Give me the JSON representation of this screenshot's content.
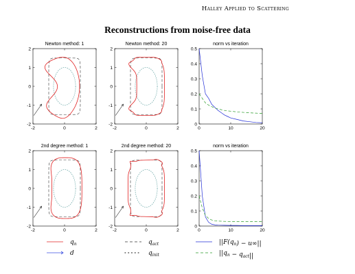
{
  "header": {
    "running_title": "Halley Applied to Scattering"
  },
  "figure": {
    "title": "Reconstructions from noise-free data"
  },
  "chart_data": [
    {
      "type": "line",
      "title": "Newton method: 1",
      "xlim": [
        -2,
        2
      ],
      "ylim": [
        -2,
        2
      ],
      "xticks": [
        "-2",
        "0",
        "2"
      ],
      "yticks": [
        "-2",
        "-1",
        "0",
        "1",
        "2"
      ],
      "curves": {
        "qn_shape": "reconstruction_newton_1"
      }
    },
    {
      "type": "line",
      "title": "Newton method: 20",
      "xlim": [
        -2,
        2
      ],
      "ylim": [
        -2,
        2
      ],
      "xticks": [
        "-2",
        "0",
        "2"
      ],
      "yticks": [
        "-2",
        "-1",
        "0",
        "1",
        "2"
      ],
      "curves": {
        "qn_shape": "reconstruction_newton_20"
      }
    },
    {
      "type": "line",
      "title": "norm vs iteration",
      "xlim": [
        0,
        20
      ],
      "ylim": [
        0,
        0.5
      ],
      "xticks": [
        "0",
        "10",
        "20"
      ],
      "yticks": [
        "0",
        "0.1",
        "0.2",
        "0.3",
        "0.4",
        "0.5"
      ],
      "series": [
        {
          "x": [
            0,
            1,
            2,
            3,
            4,
            5,
            6,
            7,
            8,
            9,
            10,
            12,
            14,
            16,
            18,
            20
          ],
          "values": [
            0.5,
            0.32,
            0.2,
            0.17,
            0.13,
            0.11,
            0.09,
            0.075,
            0.06,
            0.05,
            0.04,
            0.03,
            0.02,
            0.015,
            0.01,
            0.008
          ],
          "color": "#1f2bd6",
          "style": "solid"
        },
        {
          "x": [
            0,
            1,
            2,
            3,
            4,
            5,
            6,
            7,
            8,
            9,
            10,
            12,
            14,
            16,
            18,
            20
          ],
          "values": [
            0.2,
            0.17,
            0.14,
            0.125,
            0.115,
            0.105,
            0.1,
            0.095,
            0.09,
            0.087,
            0.085,
            0.08,
            0.077,
            0.074,
            0.072,
            0.07
          ],
          "color": "#2a9a2a",
          "style": "dashed"
        }
      ]
    },
    {
      "type": "line",
      "title": "2nd degree method: 1",
      "xlim": [
        -2,
        2
      ],
      "ylim": [
        -2,
        2
      ],
      "xticks": [
        "-2",
        "0",
        "2"
      ],
      "yticks": [
        "-2",
        "-1",
        "0",
        "1",
        "2"
      ],
      "curves": {
        "qn_shape": "reconstruction_2nd_1"
      }
    },
    {
      "type": "line",
      "title": "2nd degree method: 20",
      "xlim": [
        -2,
        2
      ],
      "ylim": [
        -2,
        2
      ],
      "xticks": [
        "-2",
        "0",
        "2"
      ],
      "yticks": [
        "-2",
        "-1",
        "0",
        "1",
        "2"
      ],
      "curves": {
        "qn_shape": "reconstruction_2nd_20"
      }
    },
    {
      "type": "line",
      "title": "norm vs iteration",
      "xlim": [
        0,
        20
      ],
      "ylim": [
        0,
        0.5
      ],
      "xticks": [
        "0",
        "10",
        "20"
      ],
      "yticks": [
        "0",
        "0.1",
        "0.2",
        "0.3",
        "0.4",
        "0.5"
      ],
      "series": [
        {
          "x": [
            0,
            1,
            2,
            3,
            4,
            5,
            6,
            8,
            10,
            12,
            14,
            16,
            18,
            20
          ],
          "values": [
            0.5,
            0.2,
            0.06,
            0.025,
            0.012,
            0.008,
            0.006,
            0.005,
            0.004,
            0.004,
            0.003,
            0.003,
            0.003,
            0.003
          ],
          "color": "#1f2bd6",
          "style": "solid"
        },
        {
          "x": [
            0,
            1,
            2,
            3,
            4,
            5,
            6,
            8,
            10,
            12,
            14,
            16,
            18,
            20
          ],
          "values": [
            0.2,
            0.12,
            0.07,
            0.05,
            0.04,
            0.035,
            0.033,
            0.031,
            0.03,
            0.03,
            0.03,
            0.03,
            0.03,
            0.03
          ],
          "color": "#2a9a2a",
          "style": "dashed"
        }
      ]
    }
  ],
  "legend": [
    {
      "label": "q",
      "sub": "n",
      "color": "#e02020",
      "style": "solid"
    },
    {
      "label": "d",
      "sub": "",
      "color": "#3b4fe0",
      "style": "arrow"
    },
    {
      "label": "q",
      "sub": "act",
      "color": "#333333",
      "style": "dashed"
    },
    {
      "label": "q",
      "sub": "init",
      "color": "#333333",
      "style": "dotted"
    },
    {
      "label": "||F(q",
      "sub": "n",
      "tail": ") − u∞||",
      "color": "#1f2bd6",
      "style": "solid"
    },
    {
      "label": "||q",
      "sub": "n",
      "tail": " − q",
      "sub2": "act",
      "tail2": "||",
      "color": "#2a9a2a",
      "style": "dashed"
    }
  ],
  "colors": {
    "qn": "#e02020",
    "qact": "#333333",
    "qinit": "#7ab0b0",
    "blue": "#1f2bd6",
    "green": "#2a9a2a"
  }
}
